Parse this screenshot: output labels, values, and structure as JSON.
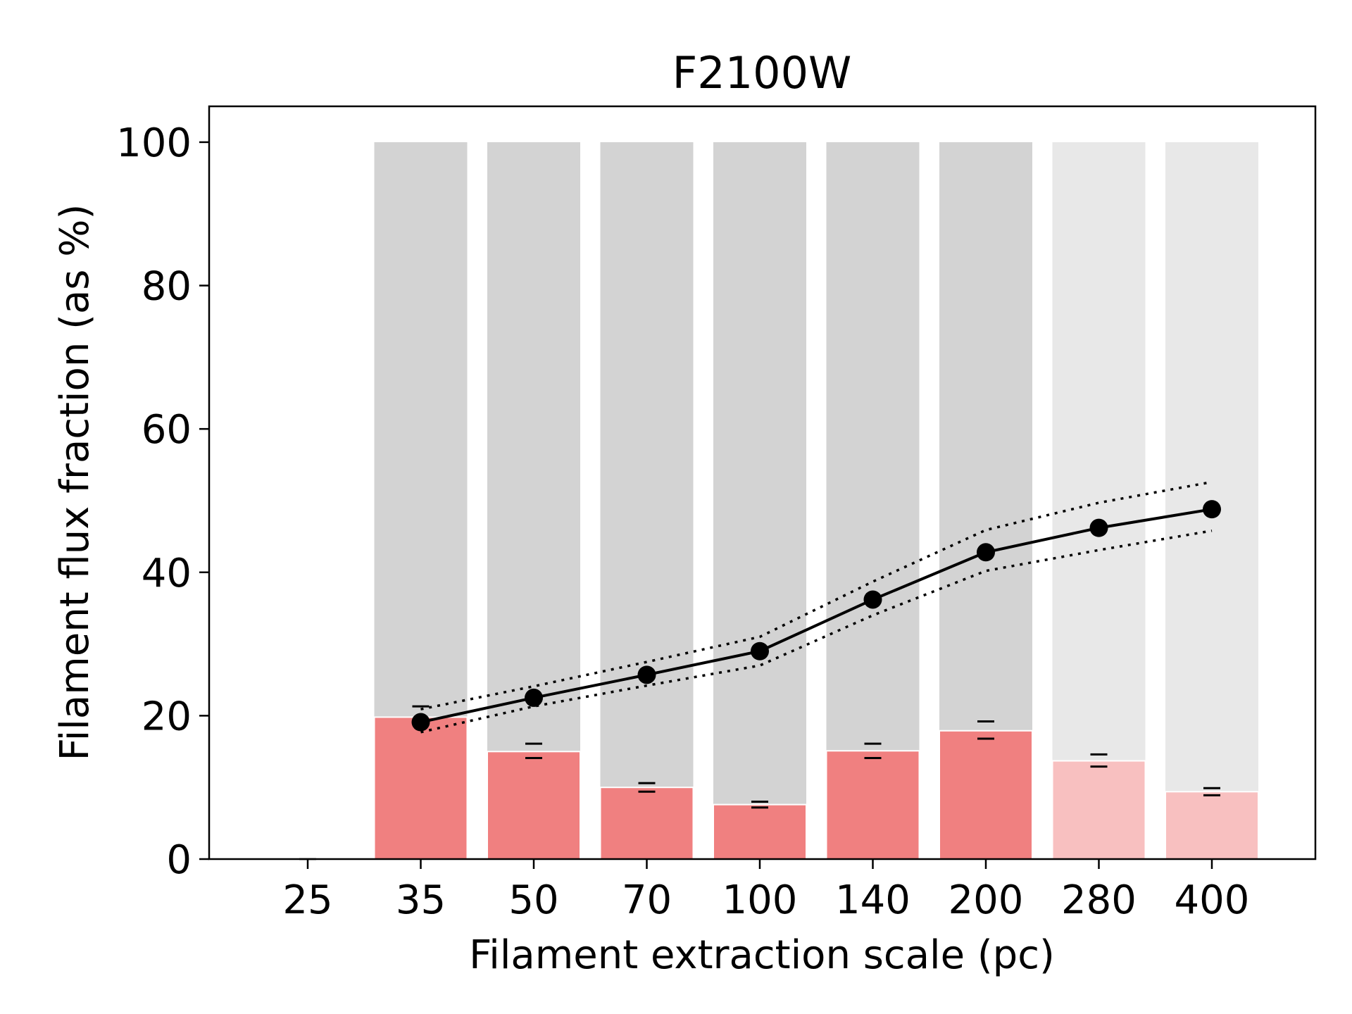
{
  "chart_data": {
    "type": "bar",
    "title": "F2100W",
    "xlabel": "Filament extraction scale (pc)",
    "ylabel": "Filament flux fraction (as %)",
    "categories": [
      "25",
      "35",
      "50",
      "70",
      "100",
      "140",
      "200",
      "280",
      "400"
    ],
    "ylim": [
      0,
      105
    ],
    "yticks": [
      0,
      20,
      40,
      60,
      80,
      100
    ],
    "grid": false,
    "legend": "none",
    "bars": {
      "total": [
        0,
        100,
        100,
        100,
        100,
        100,
        100,
        100,
        100
      ],
      "filament": [
        0,
        19.8,
        15.0,
        10.0,
        7.6,
        15.1,
        17.9,
        13.7,
        9.4
      ],
      "err_upper": [
        0,
        21.3,
        16.1,
        10.6,
        8.0,
        16.1,
        19.2,
        14.6,
        9.9
      ],
      "err_lower": [
        0,
        19.3,
        14.1,
        9.4,
        7.2,
        14.1,
        16.8,
        12.9,
        8.9
      ],
      "faded": [
        false,
        false,
        false,
        false,
        false,
        false,
        false,
        true,
        true
      ]
    },
    "line": {
      "categories": [
        "35",
        "50",
        "70",
        "100",
        "140",
        "200",
        "280",
        "400"
      ],
      "values": [
        19.1,
        22.5,
        25.7,
        29.0,
        36.2,
        42.8,
        46.2,
        48.8
      ],
      "upper": [
        20.9,
        24.1,
        27.5,
        31.0,
        38.7,
        45.9,
        49.7,
        52.6
      ],
      "lower": [
        17.7,
        21.3,
        24.2,
        27.0,
        34.0,
        40.2,
        43.1,
        45.8
      ]
    },
    "colors": {
      "total_bar": "#d3d3d3",
      "total_bar_faded": "#e8e8e8",
      "filament_bar": "#f08080",
      "filament_bar_faded": "#f8c0c0",
      "line": "#000000"
    }
  }
}
